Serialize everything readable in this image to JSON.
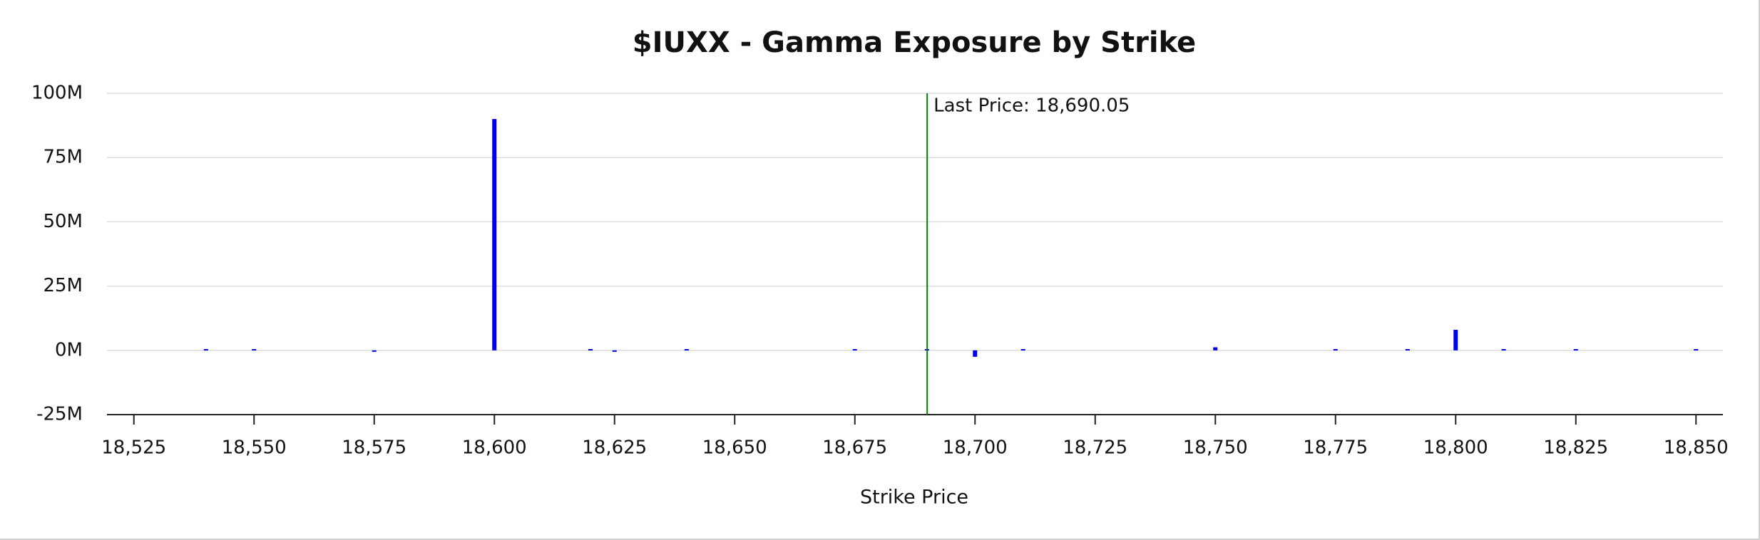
{
  "chart_data": {
    "type": "bar",
    "title": "$IUXX - Gamma Exposure by Strike",
    "x_label": "Strike Price",
    "x": [
      18540,
      18550,
      18575,
      18600,
      18620,
      18625,
      18640,
      18675,
      18690,
      18700,
      18710,
      18750,
      18775,
      18790,
      18800,
      18810,
      18825,
      18850
    ],
    "values": [
      500000,
      500000,
      -500000,
      90000000,
      500000,
      -500000,
      500000,
      500000,
      500000,
      -2500000,
      500000,
      1200000,
      500000,
      500000,
      8000000,
      500000,
      500000,
      500000
    ],
    "color": "#0000e6",
    "xlim": [
      18519.4,
      18855.6
    ],
    "ylim": [
      -25000000,
      100000000
    ],
    "xticks": [
      {
        "value": 18525,
        "label": "18,525"
      },
      {
        "value": 18550,
        "label": "18,550"
      },
      {
        "value": 18575,
        "label": "18,575"
      },
      {
        "value": 18600,
        "label": "18,600"
      },
      {
        "value": 18625,
        "label": "18,625"
      },
      {
        "value": 18650,
        "label": "18,650"
      },
      {
        "value": 18675,
        "label": "18,675"
      },
      {
        "value": 18700,
        "label": "18,700"
      },
      {
        "value": 18725,
        "label": "18,725"
      },
      {
        "value": 18750,
        "label": "18,750"
      },
      {
        "value": 18775,
        "label": "18,775"
      },
      {
        "value": 18800,
        "label": "18,800"
      },
      {
        "value": 18825,
        "label": "18,825"
      },
      {
        "value": 18850,
        "label": "18,850"
      }
    ],
    "yticks": [
      {
        "value": -25000000,
        "label": "-25M"
      },
      {
        "value": 0,
        "label": "0M"
      },
      {
        "value": 25000000,
        "label": "25M"
      },
      {
        "value": 50000000,
        "label": "50M"
      },
      {
        "value": 75000000,
        "label": "75M"
      },
      {
        "value": 100000000,
        "label": "100M"
      }
    ],
    "grid": true,
    "annotation": {
      "x": 18690.05,
      "label": "Last Price: 18,690.05",
      "color": "#008000"
    }
  }
}
